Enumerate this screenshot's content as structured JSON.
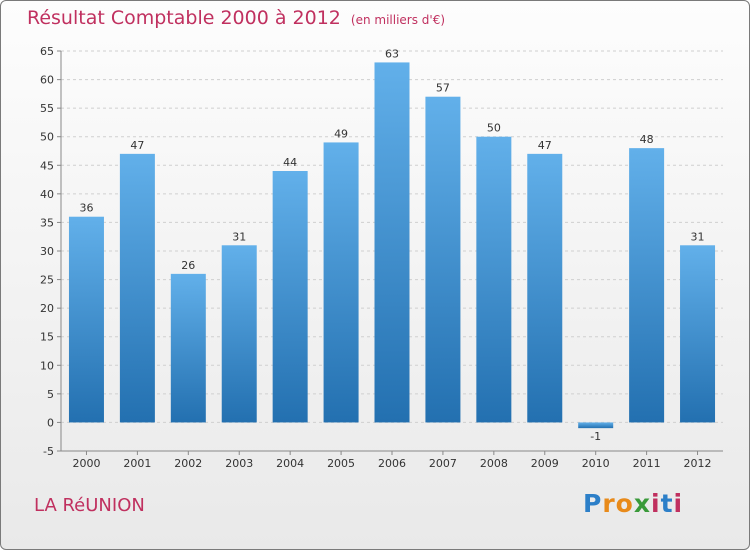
{
  "header": {
    "title": "Résultat Comptable 2000 à 2012",
    "subtitle": "(en milliers d'€)"
  },
  "footer": {
    "location": "LA RéUNION",
    "logo_letters": [
      "P",
      "r",
      "o",
      "x",
      "i",
      "t",
      "i"
    ]
  },
  "colors": {
    "title": "#c0305f",
    "bar_light": "#62b0ea",
    "bar_dark": "#2370b0",
    "grid": "#cfcfcf",
    "axis": "#888888"
  },
  "chart_data": {
    "type": "bar",
    "title": "Résultat Comptable 2000 à 2012",
    "subtitle": "(en milliers d'€)",
    "xlabel": "",
    "ylabel": "",
    "categories": [
      "2000",
      "2001",
      "2002",
      "2003",
      "2004",
      "2005",
      "2006",
      "2007",
      "2008",
      "2009",
      "2010",
      "2011",
      "2012"
    ],
    "values": [
      36,
      47,
      26,
      31,
      44,
      49,
      63,
      57,
      50,
      47,
      -1,
      48,
      31
    ],
    "ylim": [
      -5,
      65
    ],
    "yticks": [
      -5,
      0,
      5,
      10,
      15,
      20,
      25,
      30,
      35,
      40,
      45,
      50,
      55,
      60,
      65
    ],
    "grid": true,
    "grid_style": "dashed horizontal",
    "legend": "none"
  }
}
